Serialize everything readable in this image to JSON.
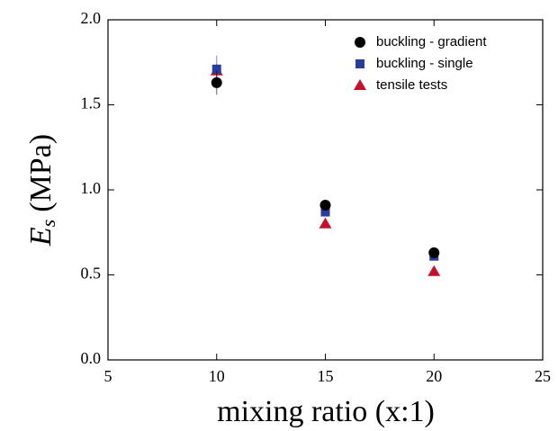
{
  "chart_data": {
    "type": "scatter",
    "x_label": "mixing ratio (x:1)",
    "y_label_symbol": "E",
    "y_label_subscript": "s",
    "y_label_unit": "(MPa)",
    "x": [
      10,
      15,
      20
    ],
    "series": [
      {
        "name": "buckling - gradient",
        "color": "#000000",
        "marker": "circle",
        "values": [
          1.63,
          0.91,
          0.63
        ],
        "errors": [
          0.07,
          0.02,
          0.02
        ]
      },
      {
        "name": "buckling - single",
        "color": "#2a3d9c",
        "marker": "square",
        "values": [
          1.71,
          0.87,
          0.61
        ],
        "errors": [
          0.08,
          0.01,
          0.01
        ]
      },
      {
        "name": "tensile tests",
        "color": "#c4122c",
        "marker": "triangle",
        "values": [
          1.7,
          0.8,
          0.52
        ],
        "errors": [
          0.04,
          0.02,
          0.02
        ]
      }
    ],
    "xlim": [
      5,
      25
    ],
    "xticks": [
      5,
      10,
      15,
      20,
      25
    ],
    "ylim": [
      0,
      2
    ],
    "yticks": [
      {
        "value": 0,
        "label": "0.0"
      },
      0.5,
      {
        "value": 1,
        "label": "1.0"
      },
      1.5,
      {
        "value": 2,
        "label": "2.0"
      }
    ],
    "legend": "upper right"
  }
}
